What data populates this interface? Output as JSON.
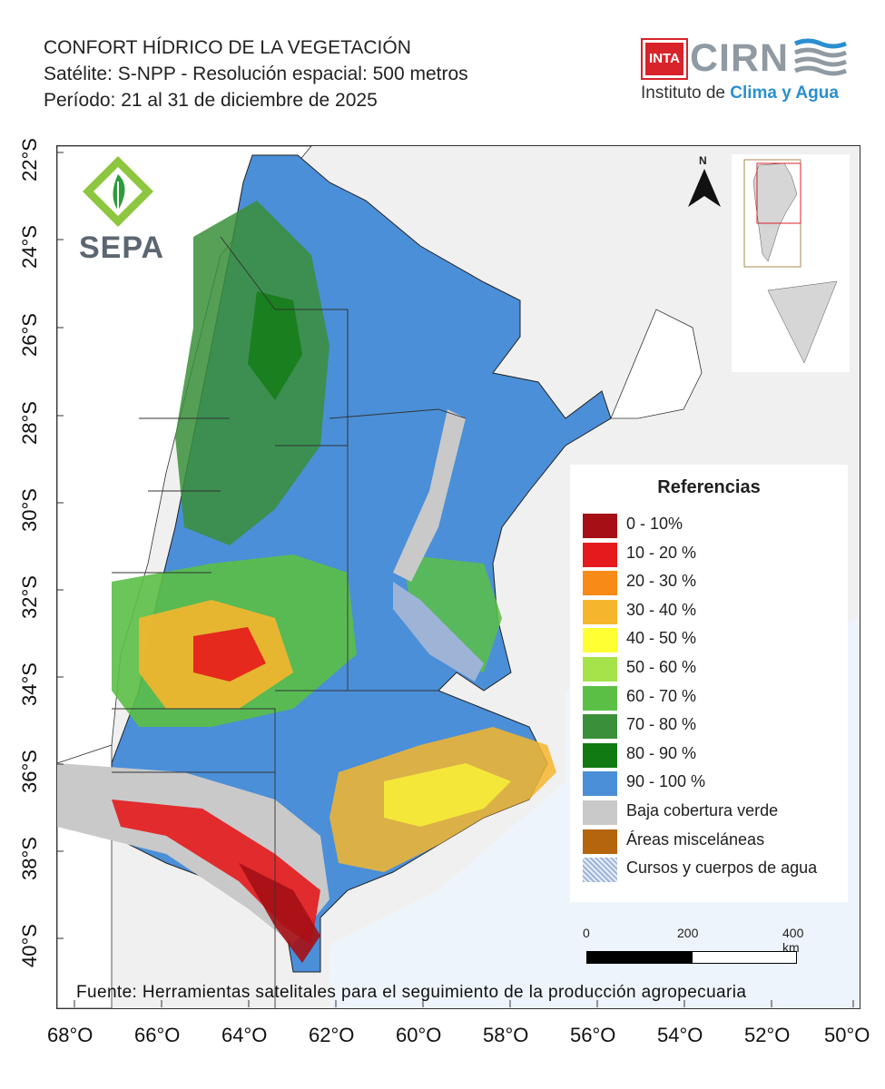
{
  "header": {
    "title": "CONFORT HÍDRICO DE LA VEGETACIÓN",
    "satellite": "Satélite: S-NPP - Resolución espacial: 500 metros",
    "period": "Período: 21 al 31 de diciembre de 2025"
  },
  "logos": {
    "inta": "INTA",
    "cirn": "CIRN",
    "institute_prefix": "Instituto de ",
    "institute_highlight": "Clima y Agua",
    "sepa": "SEPA"
  },
  "north_label": "N",
  "latitude_labels": [
    "22°S",
    "24°S",
    "26°S",
    "28°S",
    "30°S",
    "32°S",
    "34°S",
    "36°S",
    "38°S",
    "40°S"
  ],
  "longitude_labels": [
    "68°O",
    "66°O",
    "64°O",
    "62°O",
    "60°O",
    "58°O",
    "56°O",
    "54°O",
    "52°O",
    "50°O"
  ],
  "legend": {
    "title": "Referencias",
    "items": [
      {
        "label": "0 - 10%",
        "color": "#a50f15"
      },
      {
        "label": "10 - 20 %",
        "color": "#e41a1c"
      },
      {
        "label": "20 - 30 %",
        "color": "#f88a17"
      },
      {
        "label": "30 - 40 %",
        "color": "#f5b62e"
      },
      {
        "label": "40 - 50 %",
        "color": "#ffff33"
      },
      {
        "label": "50 - 60 %",
        "color": "#a6e34a"
      },
      {
        "label": "60 - 70 %",
        "color": "#5bbf46"
      },
      {
        "label": "70 - 80 %",
        "color": "#3a8f3a"
      },
      {
        "label": "80 - 90 %",
        "color": "#127a12"
      },
      {
        "label": "90 - 100 %",
        "color": "#4a8fd8"
      },
      {
        "label": "Baja cobertura verde",
        "color": "#c9c9c9"
      },
      {
        "label": "Áreas misceláneas",
        "color": "#b5650e"
      },
      {
        "label": "Cursos y cuerpos de agua",
        "color": "#9db4d6"
      }
    ]
  },
  "scale_bar": {
    "start": "0",
    "mid": "200",
    "end": "400 km"
  },
  "source": "Fuente: Herramientas satelitales para el seguimiento de la producción agropecuaria"
}
